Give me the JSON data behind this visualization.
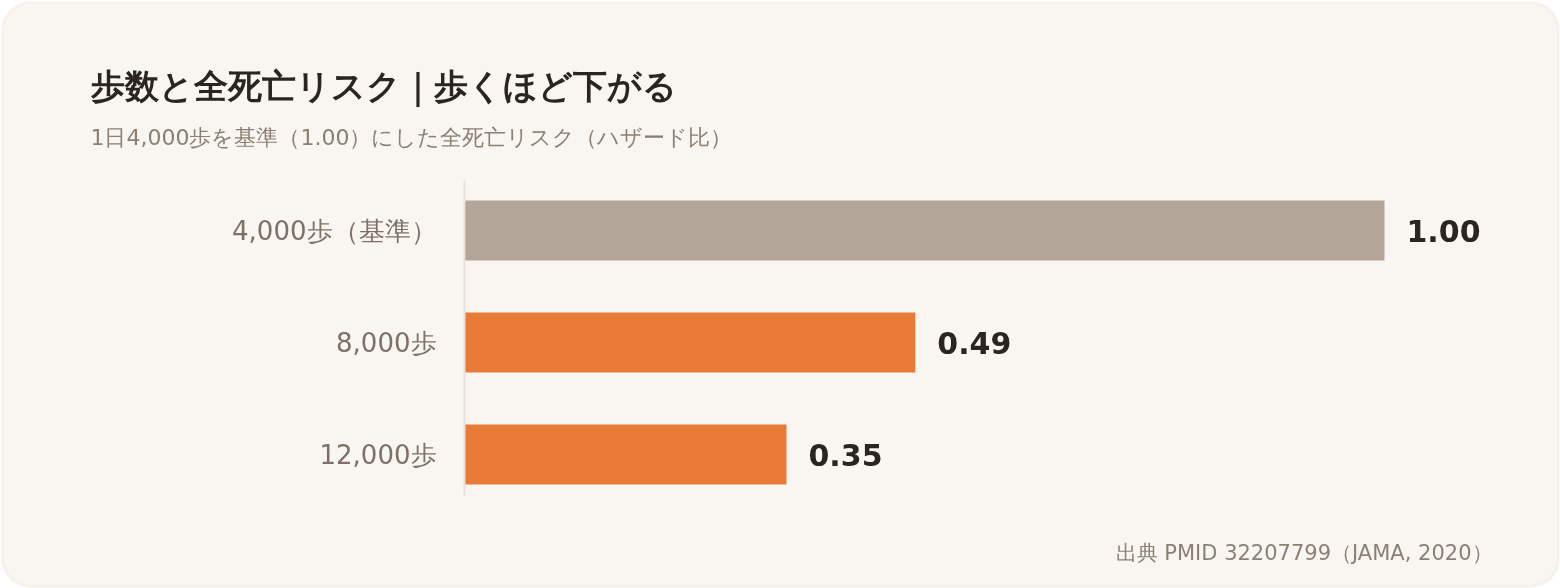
{
  "chart_data": {
    "type": "bar",
    "orientation": "horizontal",
    "title": "歩数と全死亡リスク｜歩くほど下がる",
    "subtitle": "1日4,000歩を基準（1.00）にした全死亡リスク（ハザード比）",
    "categories": [
      "4,000歩（基準）",
      "8,000歩",
      "12,000歩"
    ],
    "values": [
      1.0,
      0.49,
      0.35
    ],
    "colors": [
      "#b3a597",
      "#ea7a38",
      "#ea7a38"
    ],
    "value_labels": [
      "1.00",
      "0.49",
      "0.35"
    ],
    "tick_labels": "y",
    "annotations": [
      "出典 PMID 32207799（JAMA, 2020）"
    ]
  }
}
